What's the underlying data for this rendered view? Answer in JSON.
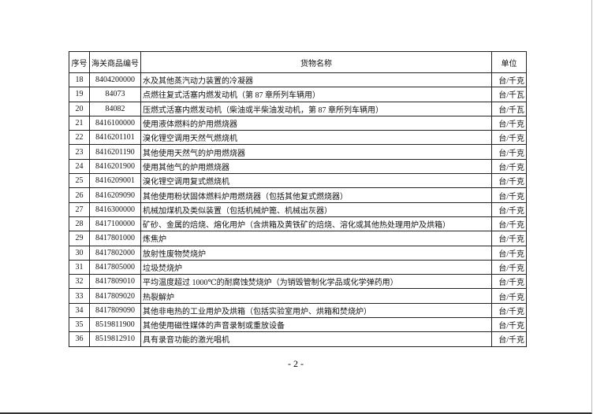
{
  "table": {
    "header": [
      "序号",
      "海关商品编号",
      "货物名称",
      "单位"
    ],
    "rows": [
      [
        "18",
        "8404200000",
        "水及其他蒸汽动力装置的冷凝器",
        "台/千克"
      ],
      [
        "19",
        "84073",
        "点燃往复式活塞内燃发动机（第 87 章所列车辆用）",
        "台/千瓦"
      ],
      [
        "20",
        "84082",
        "压燃式活塞内燃发动机（柴油或半柴油发动机，第 87 章所列车辆用）",
        "台/千瓦"
      ],
      [
        "21",
        "8416100000",
        "使用液体燃料的炉用燃烧器",
        "台/千克"
      ],
      [
        "22",
        "8416201101",
        "溴化锂空调用天然气燃烧机",
        "台/千克"
      ],
      [
        "23",
        "8416201190",
        "其他使用天然气的炉用燃烧器",
        "台/千克"
      ],
      [
        "24",
        "8416201900",
        "使用其他气的炉用燃烧器",
        "台/千克"
      ],
      [
        "25",
        "8416209001",
        "溴化锂空调用复式燃烧机",
        "台/千克"
      ],
      [
        "26",
        "8416209090",
        "其他使用粉状固体燃料炉用燃烧器（包括其他复式燃烧器）",
        "台/千克"
      ],
      [
        "27",
        "8416300000",
        "机械加煤机及类似装置（包括机械炉篦、机械出灰器）",
        "台/千克"
      ],
      [
        "28",
        "8417100000",
        "矿砂、金属的焙烧、熔化用炉（含烘箱及黄铁矿的焙烧、溶化或其他热处理用炉及烘箱）",
        "台/千克"
      ],
      [
        "29",
        "8417801000",
        "炼焦炉",
        "台/千克"
      ],
      [
        "30",
        "8417802000",
        "放射性废物焚烧炉",
        "台/千克"
      ],
      [
        "31",
        "8417805000",
        "垃圾焚烧炉",
        "台/千克"
      ],
      [
        "32",
        "8417809010",
        "平均温度超过 1000℃的耐腐蚀焚烧炉（为销毁管制化学品或化学弹药用）",
        "台/千克"
      ],
      [
        "33",
        "8417809020",
        "热裂解炉",
        "台/千克"
      ],
      [
        "34",
        "8417809090",
        "其他非电热的工业用炉及烘箱（包括实验室用炉、烘箱和焚烧炉）",
        "台/千克"
      ],
      [
        "35",
        "8519811900",
        "其他使用磁性媒体的声音录制或重放设备",
        "台/千克"
      ],
      [
        "36",
        "8519812910",
        "具有录音功能的激光唱机",
        "台/千克"
      ]
    ]
  },
  "footer": {
    "page_number": "- 2 -"
  }
}
